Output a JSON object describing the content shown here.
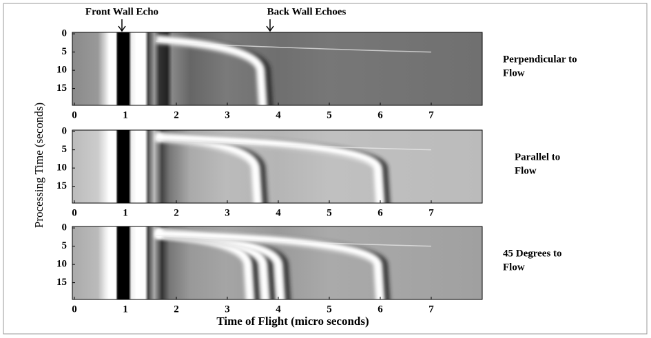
{
  "figure": {
    "xlabel": "Time of Flight (micro seconds)",
    "ylabel": "Processing Time (seconds)",
    "annotations": [
      "Front Wall Echo",
      "Back Wall Echoes"
    ]
  },
  "chart_data": [
    {
      "type": "heatmap",
      "label": [
        "Perpendicular to",
        "Flow"
      ],
      "xlim": [
        -0.04,
        8
      ],
      "xticks": [
        0,
        1,
        2,
        3,
        4,
        5,
        6,
        7
      ],
      "ylim": [
        -0.4,
        19.6
      ],
      "yticks": [
        0,
        5,
        10,
        15
      ]
    },
    {
      "type": "heatmap",
      "label": [
        "Parallel to",
        "Flow"
      ],
      "xlim": [
        -0.04,
        8
      ],
      "xticks": [
        0,
        1,
        2,
        3,
        4,
        5,
        6,
        7
      ],
      "ylim": [
        -0.4,
        19.6
      ],
      "yticks": [
        0,
        5,
        10,
        15
      ]
    },
    {
      "type": "heatmap",
      "label": [
        "45 Degrees to",
        "Flow"
      ],
      "xlim": [
        -0.04,
        8
      ],
      "xticks": [
        0,
        1,
        2,
        3,
        4,
        5,
        6,
        7
      ],
      "ylim": [
        -0.4,
        19.6
      ],
      "yticks": [
        0,
        5,
        10,
        15
      ]
    }
  ]
}
